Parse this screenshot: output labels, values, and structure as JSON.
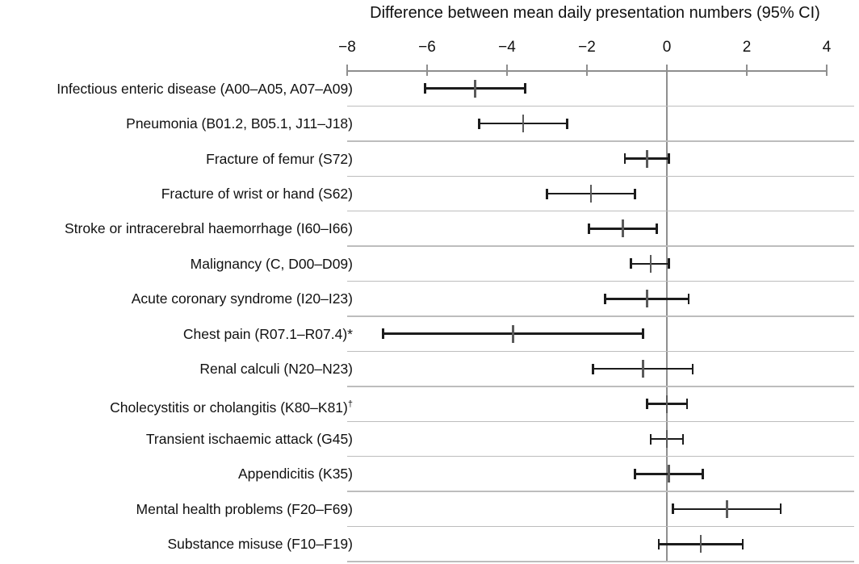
{
  "chart_data": {
    "type": "scatter",
    "subtype": "forest-plot",
    "title": "Difference between mean daily presentation numbers (95% CI)",
    "xlabel": "",
    "ylabel": "",
    "xlim": [
      -8,
      4
    ],
    "x_ticks": [
      -8,
      -6,
      -4,
      -2,
      0,
      2,
      4
    ],
    "x_tick_labels": [
      "−8",
      "−6",
      "−4",
      "−2",
      "0",
      "2",
      "4"
    ],
    "reference_line_x": 0,
    "grid": "horizontal-row-separators",
    "legend": "none",
    "rows": [
      {
        "label": "Infectious enteric disease (A00–A05, A07–A09)",
        "estimate": -4.8,
        "ci_low": -6.05,
        "ci_high": -3.55
      },
      {
        "label": "Pneumonia (B01.2, B05.1, J11–J18)",
        "estimate": -3.6,
        "ci_low": -4.7,
        "ci_high": -2.5
      },
      {
        "label": "Fracture of femur (S72)",
        "estimate": -0.5,
        "ci_low": -1.05,
        "ci_high": 0.05
      },
      {
        "label": "Fracture of wrist or hand (S62)",
        "estimate": -1.9,
        "ci_low": -3.0,
        "ci_high": -0.8
      },
      {
        "label": "Stroke or intracerebral haemorrhage (I60–I66)",
        "estimate": -1.1,
        "ci_low": -1.95,
        "ci_high": -0.25
      },
      {
        "label": "Malignancy (C, D00–D09)",
        "estimate": -0.4,
        "ci_low": -0.9,
        "ci_high": 0.05
      },
      {
        "label": "Acute coronary syndrome (I20–I23)",
        "estimate": -0.5,
        "ci_low": -1.55,
        "ci_high": 0.55
      },
      {
        "label": "Chest pain (R07.1–R07.4)*",
        "estimate": -3.85,
        "ci_low": -7.1,
        "ci_high": -0.6
      },
      {
        "label": "Renal calculi (N20–N23)",
        "estimate": -0.6,
        "ci_low": -1.85,
        "ci_high": 0.65
      },
      {
        "label": "Cholecystitis or cholangitis (K80–K81)",
        "label_suffix": "†",
        "estimate": 0.0,
        "ci_low": -0.5,
        "ci_high": 0.5
      },
      {
        "label": "Transient ischaemic attack (G45)",
        "estimate": 0.0,
        "ci_low": -0.4,
        "ci_high": 0.4
      },
      {
        "label": "Appendicitis (K35)",
        "estimate": 0.05,
        "ci_low": -0.8,
        "ci_high": 0.9
      },
      {
        "label": "Mental health problems (F20–F69)",
        "estimate": 1.5,
        "ci_low": 0.15,
        "ci_high": 2.85
      },
      {
        "label": "Substance misuse (F10–F19)",
        "estimate": 0.85,
        "ci_low": -0.2,
        "ci_high": 1.9
      }
    ]
  },
  "colors": {
    "axis": "#8f8f8f",
    "gridline": "#bdbdbd",
    "zero_line": "#8f8f8f",
    "ci_bar": "#1c1c1c",
    "estimate_tick": "#5a5a5a",
    "text": "#111111",
    "background": "#ffffff"
  }
}
